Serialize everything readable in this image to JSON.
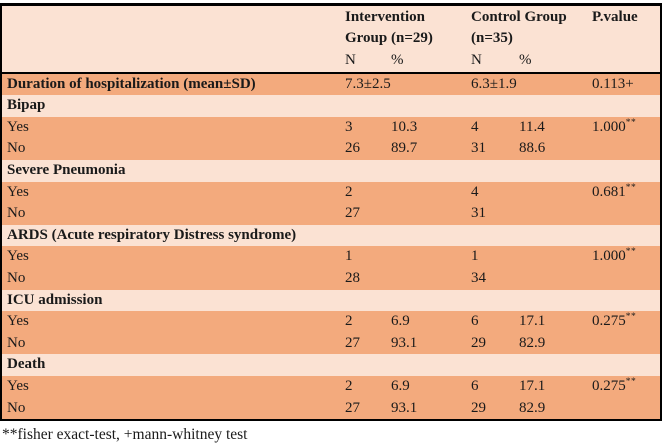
{
  "colors": {
    "row_salmon": "#F3AA7D",
    "row_light": "#FBE2D3",
    "border": "#000000",
    "page_bg": "#FFFFFF",
    "text": "#1a1a1a"
  },
  "table": {
    "header": {
      "label_col": "",
      "intervention": "Intervention Group (n=29)",
      "control": "Control Group (n=35)",
      "pvalue": "P.value",
      "sub": [
        "N",
        "%",
        "N",
        "%"
      ]
    },
    "rows": [
      {
        "kind": "measure",
        "label": "Duration of hospitalization (mean±SD)",
        "v1": "7.3±2.5",
        "v2": "6.3±1.9",
        "p": "0.113+",
        "sup": ""
      },
      {
        "kind": "section",
        "label": "Bipap"
      },
      {
        "kind": "data",
        "label": "Yes",
        "n1": "3",
        "pct1": "10.3",
        "n2": "4",
        "pct2": "11.4",
        "p": "1.000",
        "sup": "**"
      },
      {
        "kind": "data",
        "label": "No",
        "n1": "26",
        "pct1": "89.7",
        "n2": "31",
        "pct2": "88.6",
        "p": "",
        "sup": ""
      },
      {
        "kind": "section",
        "label": "Severe Pneumonia"
      },
      {
        "kind": "data",
        "label": "Yes",
        "n1": "2",
        "pct1": "",
        "n2": "4",
        "pct2": "",
        "p": "0.681",
        "sup": "**"
      },
      {
        "kind": "data",
        "label": "No",
        "n1": "27",
        "pct1": "",
        "n2": "31",
        "pct2": "",
        "p": "",
        "sup": ""
      },
      {
        "kind": "section",
        "label": "ARDS (Acute respiratory Distress syndrome)"
      },
      {
        "kind": "data",
        "label": "Yes",
        "n1": "1",
        "pct1": "",
        "n2": "1",
        "pct2": "",
        "p": "1.000",
        "sup": "**"
      },
      {
        "kind": "data",
        "label": "No",
        "n1": "28",
        "pct1": "",
        "n2": "34",
        "pct2": "",
        "p": "",
        "sup": ""
      },
      {
        "kind": "section",
        "label": "ICU admission"
      },
      {
        "kind": "data",
        "label": "Yes",
        "n1": "2",
        "pct1": "6.9",
        "n2": "6",
        "pct2": "17.1",
        "p": "0.275",
        "sup": "**"
      },
      {
        "kind": "data",
        "label": "No",
        "n1": "27",
        "pct1": "93.1",
        "n2": "29",
        "pct2": "82.9",
        "p": "",
        "sup": ""
      },
      {
        "kind": "section",
        "label": "Death"
      },
      {
        "kind": "data",
        "label": "Yes",
        "n1": "2",
        "pct1": "6.9",
        "n2": "6",
        "pct2": "17.1",
        "p": "0.275",
        "sup": "**"
      },
      {
        "kind": "data",
        "label": "No",
        "n1": "27",
        "pct1": "93.1",
        "n2": "29",
        "pct2": "82.9",
        "p": "",
        "sup": ""
      }
    ],
    "footnote": "**fisher exact-test, +mann-whitney test"
  }
}
